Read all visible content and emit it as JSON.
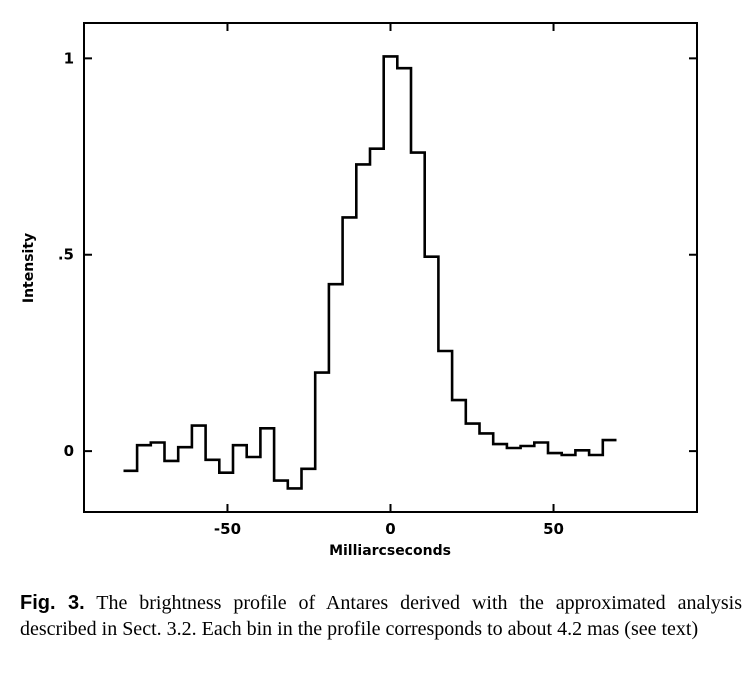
{
  "chart_data": {
    "type": "line",
    "style": "step",
    "xlabel": "Milliarcseconds",
    "ylabel": "Intensity",
    "xlim": [
      -94,
      94
    ],
    "ylim": [
      -0.155,
      1.09
    ],
    "x_ticks": [
      -50,
      0,
      50
    ],
    "x_tick_labels": [
      "-50",
      "0",
      "50"
    ],
    "y_ticks": [
      0,
      0.5,
      1
    ],
    "y_tick_labels": [
      "0",
      ".5",
      "1"
    ],
    "grid": false,
    "bin_width": 4.2,
    "x_start": -81.9,
    "values": [
      -0.05,
      0.015,
      0.022,
      -0.025,
      0.01,
      0.065,
      -0.022,
      -0.055,
      0.015,
      -0.015,
      0.058,
      -0.075,
      -0.095,
      -0.045,
      0.2,
      0.425,
      0.595,
      0.73,
      0.77,
      1.005,
      0.975,
      0.76,
      0.495,
      0.255,
      0.13,
      0.07,
      0.045,
      0.018,
      0.008,
      0.013,
      0.022,
      -0.005,
      -0.01,
      0.002,
      -0.01,
      0.028
    ]
  },
  "caption": {
    "figure_label": "Fig. 3.",
    "text": "The brightness profile of Antares derived with the approximated analysis described in Sect. 3.2. Each bin in the profile corresponds to about 4.2 mas (see text)"
  }
}
